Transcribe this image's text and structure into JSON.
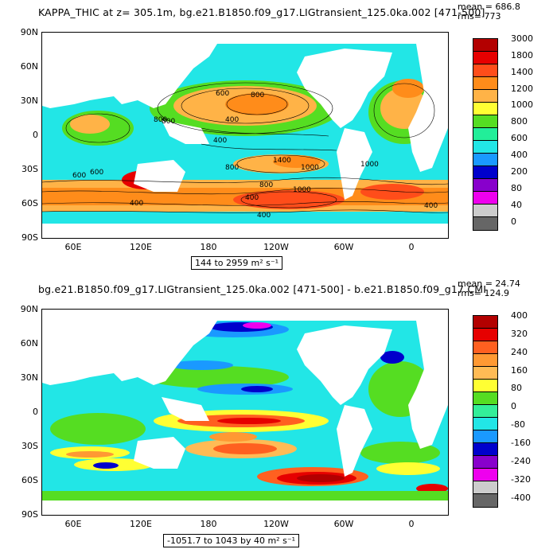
{
  "top": {
    "title": "KAPPA_THIC at z= 305.1m, bg.e21.B1850.f09_g17.LIGtransient_125.0ka.002 [471-500]",
    "mean_label": "mean = 686.8",
    "rms_label": "rms= 773",
    "range_label": "144 to 2959 m² s⁻¹",
    "colorbar": {
      "labels": [
        "3000",
        "1800",
        "1400",
        "1200",
        "1000",
        "800",
        "600",
        "400",
        "200",
        "80",
        "40",
        "0"
      ],
      "colors": [
        "#b30000",
        "#e60000",
        "#ff4d1a",
        "#ff8c1a",
        "#ffb347",
        "#ffff33",
        "#55dd22",
        "#22ee99",
        "#22e6e6",
        "#1a99ff",
        "#0000cc",
        "#8800cc",
        "#ee00ee",
        "#cccccc",
        "#666666"
      ]
    },
    "contour_labels": [
      "600",
      "800",
      "400",
      "800",
      "800",
      "400",
      "600",
      "1400",
      "1000",
      "600",
      "800",
      "800",
      "400",
      "1000",
      "400",
      "400",
      "1000",
      "400"
    ]
  },
  "bottom": {
    "title": "bg.e21.B1850.f09_g17.LIGtransient_125.0ka.002 [471-500] - b.e21.B1850.f09_g17.CMI",
    "mean_label": "mean = 24.74",
    "rms_label": "rms= 124.9",
    "range_label": "-1051.7 to 1043 by 40 m² s⁻¹",
    "colorbar": {
      "labels": [
        "400",
        "320",
        "240",
        "160",
        "80",
        "0",
        "-80",
        "-160",
        "-240",
        "-320",
        "-400"
      ],
      "colors": [
        "#b30000",
        "#e60000",
        "#ff6020",
        "#ff9933",
        "#ffbb55",
        "#ffff33",
        "#55dd22",
        "#33ee99",
        "#22e6e6",
        "#1a99ff",
        "#0000cc",
        "#8800cc",
        "#ee00ee",
        "#cccccc",
        "#666666"
      ]
    }
  },
  "axes": {
    "y_ticks": [
      "90N",
      "60N",
      "30N",
      "0",
      "30S",
      "60S",
      "90S"
    ],
    "x_ticks": [
      "60E",
      "120E",
      "180",
      "120W",
      "60W",
      "0"
    ]
  }
}
